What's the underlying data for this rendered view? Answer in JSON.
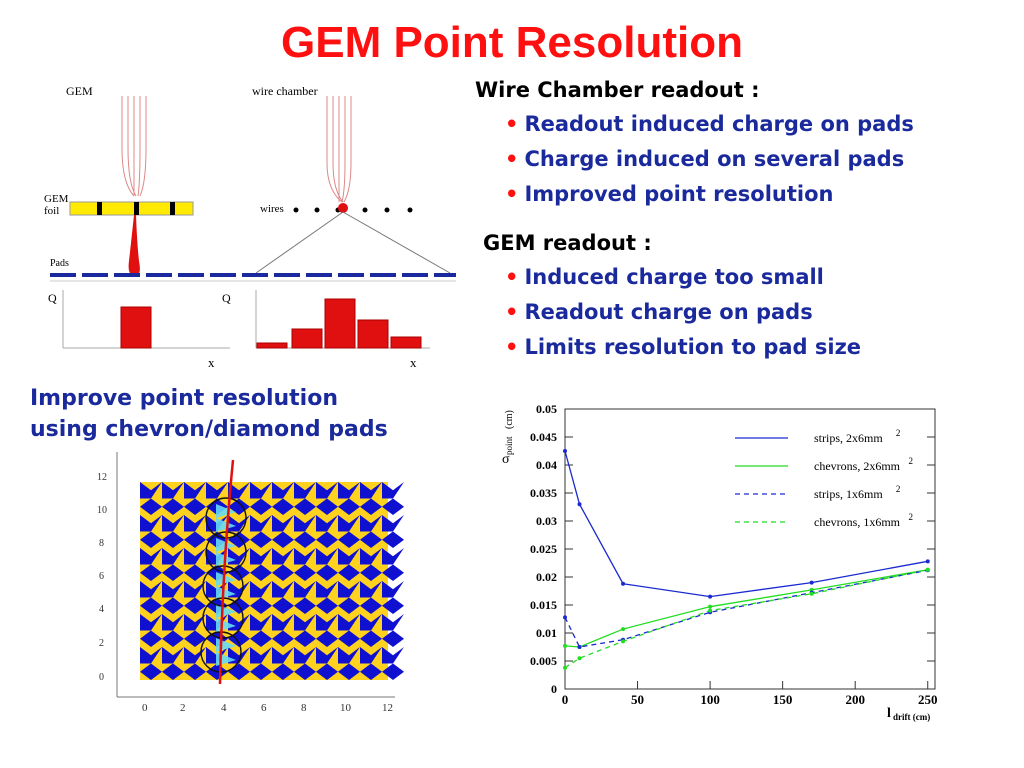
{
  "title": "GEM Point Resolution",
  "wire_section": {
    "header": "Wire Chamber readout :",
    "bullets": [
      "Readout induced charge on pads",
      "Charge induced on several pads",
      "Improved point resolution"
    ]
  },
  "gem_section": {
    "header": "GEM readout :",
    "bullets": [
      "Induced charge too small",
      "Readout charge on pads",
      "Limits resolution to pad size"
    ]
  },
  "improve_text": {
    "line1": "Improve point resolution",
    "line2": "using chevron/diamond pads"
  },
  "diagram": {
    "gem_label": "GEM",
    "wire_label": "wire chamber",
    "foil_label_1": "GEM",
    "foil_label_2": "foil",
    "wires_label": "wires",
    "pads_label": "Pads",
    "q_label": "Q",
    "x_label": "x"
  },
  "pad_plot": {
    "x_ticks": [
      "0",
      "2",
      "4",
      "6",
      "8",
      "10",
      "12"
    ],
    "y_ticks": [
      "0",
      "2",
      "4",
      "6",
      "8",
      "10",
      "12"
    ]
  },
  "colors": {
    "title": "#ff1010",
    "bullet_text": "#1a2a9c",
    "strips_2x6": "#1a2ad0",
    "chevrons_2x6": "#22dd22",
    "pad_blue": "#1010d0",
    "pad_yellow": "#ffd21f",
    "pad_cyan": "#66d9f5"
  },
  "chart_data": {
    "type": "line",
    "title": "",
    "xlabel_main": "l",
    "xlabel_sub": "drift (cm)",
    "ylabel_main": "σ",
    "ylabel_sub": "point",
    "ylabel_unit": "(cm)",
    "xlim": [
      0,
      255
    ],
    "ylim": [
      0,
      0.05
    ],
    "x_ticks": [
      0,
      50,
      100,
      150,
      200,
      250
    ],
    "x_tick_labels": [
      "0",
      "50",
      "100",
      "150",
      "200",
      "250"
    ],
    "y_ticks": [
      0,
      0.005,
      0.01,
      0.015,
      0.02,
      0.025,
      0.03,
      0.035,
      0.04,
      0.045,
      0.05
    ],
    "y_tick_labels": [
      "0",
      "0.005",
      "0.01",
      "0.015",
      "0.02",
      "0.025",
      "0.03",
      "0.035",
      "0.04",
      "0.045",
      "0.05"
    ],
    "legend_placement": "top-right",
    "series": [
      {
        "name": "strips, 2x6mm",
        "sup": "2",
        "color": "#1a2ad0",
        "dash": false,
        "x": [
          0,
          10,
          40,
          100,
          170,
          250
        ],
        "y": [
          0.0425,
          0.033,
          0.0188,
          0.0165,
          0.019,
          0.0228
        ]
      },
      {
        "name": "chevrons, 2x6mm",
        "sup": "2",
        "color": "#22dd22",
        "dash": false,
        "x": [
          0,
          10,
          40,
          100,
          170,
          250
        ],
        "y": [
          0.0077,
          0.0075,
          0.0107,
          0.0147,
          0.0177,
          0.0213
        ]
      },
      {
        "name": "strips, 1x6mm",
        "sup": "2",
        "color": "#1a2ad0",
        "dash": true,
        "x": [
          0,
          10,
          40,
          100,
          170,
          250
        ],
        "y": [
          0.0128,
          0.0075,
          0.0088,
          0.0137,
          0.0172,
          0.0212
        ]
      },
      {
        "name": "chevrons, 1x6mm",
        "sup": "2",
        "color": "#22dd22",
        "dash": true,
        "x": [
          0,
          10,
          40,
          100,
          170,
          250
        ],
        "y": [
          0.0038,
          0.0055,
          0.0085,
          0.014,
          0.017,
          0.0213
        ]
      }
    ]
  }
}
